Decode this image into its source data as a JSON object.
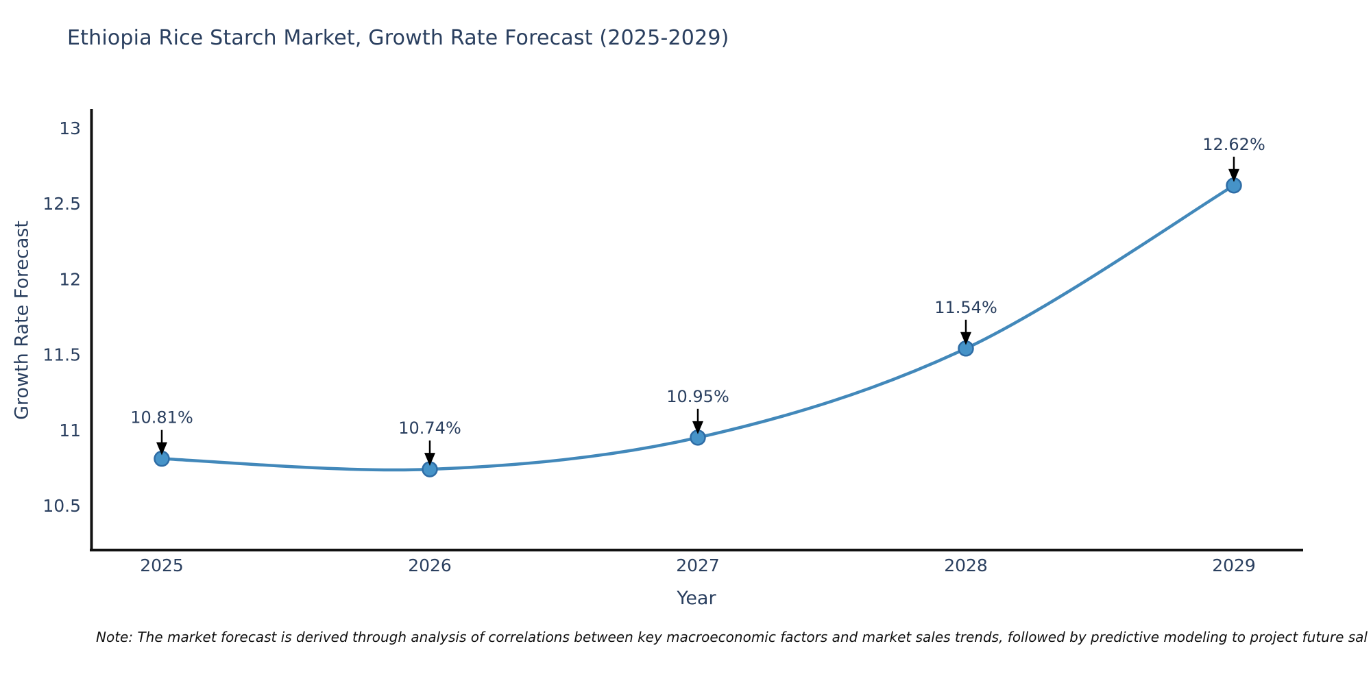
{
  "chart_data": {
    "type": "line",
    "title": "Ethiopia Rice Starch Market, Growth Rate Forecast (2025-2029)",
    "xlabel": "Year",
    "ylabel": "Growth Rate Forecast",
    "categories": [
      "2025",
      "2026",
      "2027",
      "2028",
      "2029"
    ],
    "series": [
      {
        "name": "Growth Rate Forecast",
        "values": [
          10.81,
          10.74,
          10.95,
          11.54,
          12.62
        ]
      }
    ],
    "point_labels": [
      "10.81%",
      "10.74%",
      "10.95%",
      "11.54%",
      "12.62%"
    ],
    "yticks": [
      13,
      12.5,
      12,
      11.5,
      11,
      10.5
    ],
    "ylim": [
      10.2,
      13.12
    ],
    "grid": false,
    "legend": "none",
    "line_smoothing": true
  },
  "footnote": {
    "text": "Note: The market forecast is derived through analysis of correlations between key macroeconomic factors and market sales trends, followed by predictive modeling to project future sal"
  },
  "colors": {
    "title_text": "#2a3f5f",
    "tick_text": "#2a3f5f",
    "annotation_text": "#2a3f5f",
    "axis_line": "#111111",
    "series_line": "#4288ba",
    "marker_fill": "#4693c8",
    "marker_edge": "#2e6ca5",
    "arrow": "#000000",
    "note_text": "#111111",
    "background": "#ffffff"
  }
}
